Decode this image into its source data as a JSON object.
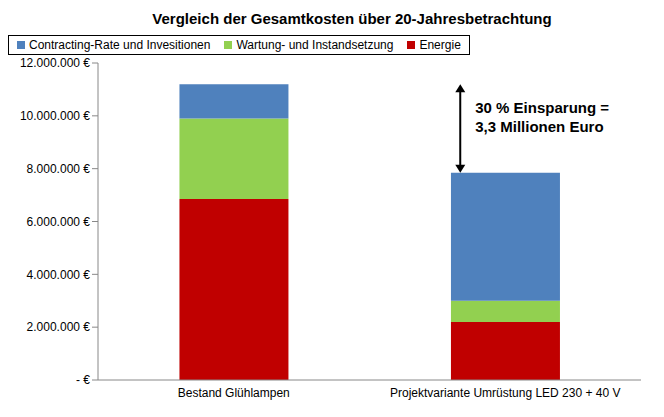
{
  "chart_data": {
    "type": "bar",
    "stacked": true,
    "title": "Vergleich der Gesamtkosten über 20-Jahresbetrachtung",
    "categories": [
      "Bestand Glühlampen",
      "Projektvariante Umrüstung LED 230 + 40 V"
    ],
    "series": [
      {
        "name": "Contracting-Rate und Invesitionen",
        "color": "#4f81bd",
        "values": [
          1300000,
          4850000
        ]
      },
      {
        "name": "Wartung- und Instandsetzung",
        "color": "#92d050",
        "values": [
          3050000,
          800000
        ]
      },
      {
        "name": "Energie",
        "color": "#c00000",
        "values": [
          6850000,
          2200000
        ]
      }
    ],
    "ylim": [
      0,
      12000000
    ],
    "yticks": [
      {
        "value": 0,
        "label": "- €"
      },
      {
        "value": 2000000,
        "label": "2.000.000 €"
      },
      {
        "value": 4000000,
        "label": "4.000.000 €"
      },
      {
        "value": 6000000,
        "label": "6.000.000 €"
      },
      {
        "value": 8000000,
        "label": "8.000.000 €"
      },
      {
        "value": 10000000,
        "label": "10.000.000 €"
      },
      {
        "value": 12000000,
        "label": "12.000.000 €"
      }
    ],
    "grid": false,
    "legend": "top",
    "annotation": [
      "30 % Einsparung =",
      "3,3 Millionen Euro"
    ]
  }
}
